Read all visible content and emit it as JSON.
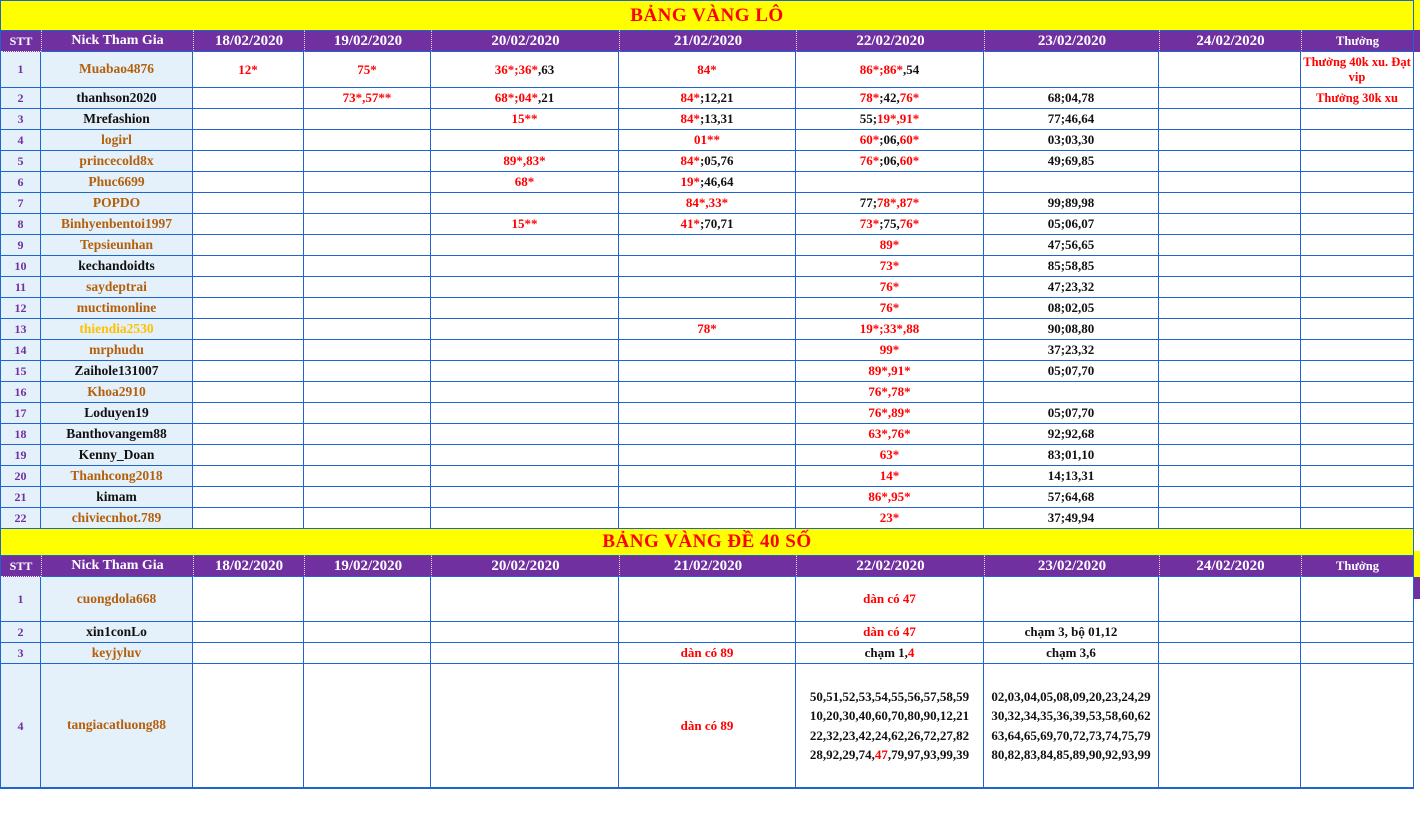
{
  "palette": {
    "red": "#FF0000",
    "black": "#111111",
    "brown": "#B45F0B",
    "gold": "#FFC000",
    "purple": "#7030A0",
    "header_bg": "#7030A0",
    "grid_blue": "#1E65D0",
    "band_yellow": "#FFFF00",
    "row_header_bg": "#E4F1FA"
  },
  "table1": {
    "title": "BẢNG VÀNG LÔ",
    "headers": [
      "STT",
      "Nick Tham Gia",
      "18/02/2020",
      "19/02/2020",
      "20/02/2020",
      "21/02/2020",
      "22/02/2020",
      "23/02/2020",
      "24/02/2020",
      "Thưởng"
    ],
    "rows": [
      {
        "stt": "1",
        "nick": "Muabao4876",
        "nick_color": "brown",
        "cells": {
          "d18": [
            {
              "t": "12*",
              "c": "red"
            }
          ],
          "d19": [
            {
              "t": "75*",
              "c": "red"
            }
          ],
          "d20": [
            {
              "t": "36*;36*",
              "c": "red"
            },
            {
              "t": ",63",
              "c": "black"
            }
          ],
          "d21": [
            {
              "t": "84*",
              "c": "red"
            }
          ],
          "d22": [
            {
              "t": "86*;86*",
              "c": "red"
            },
            {
              "t": ",54",
              "c": "black"
            }
          ],
          "reward": [
            {
              "t": "Thưởng 40k xu. Đạt vip",
              "c": "red"
            }
          ]
        }
      },
      {
        "stt": "2",
        "nick": "thanhson2020",
        "nick_color": "black",
        "cells": {
          "d19": [
            {
              "t": "73*,57**",
              "c": "red"
            }
          ],
          "d20": [
            {
              "t": "68*;04*",
              "c": "red"
            },
            {
              "t": ",21",
              "c": "black"
            }
          ],
          "d21": [
            {
              "t": "84*",
              "c": "red"
            },
            {
              "t": ";12,21",
              "c": "black"
            }
          ],
          "d22": [
            {
              "t": "78*",
              "c": "red"
            },
            {
              "t": ";42,",
              "c": "black"
            },
            {
              "t": "76*",
              "c": "red"
            }
          ],
          "d23": [
            {
              "t": "68;04,78",
              "c": "black"
            }
          ],
          "reward": [
            {
              "t": "Thưởng 30k xu",
              "c": "red"
            }
          ]
        }
      },
      {
        "stt": "3",
        "nick": "Mrefashion",
        "nick_color": "black",
        "cells": {
          "d20": [
            {
              "t": "15**",
              "c": "red"
            }
          ],
          "d21": [
            {
              "t": "84*",
              "c": "red"
            },
            {
              "t": ";13,31",
              "c": "black"
            }
          ],
          "d22": [
            {
              "t": "55;",
              "c": "black"
            },
            {
              "t": "19*,91*",
              "c": "red"
            }
          ],
          "d23": [
            {
              "t": "77;46,64",
              "c": "black"
            }
          ]
        }
      },
      {
        "stt": "4",
        "nick": "logirl",
        "nick_color": "brown",
        "cells": {
          "d21": [
            {
              "t": "01**",
              "c": "red"
            }
          ],
          "d22": [
            {
              "t": "60*",
              "c": "red"
            },
            {
              "t": ";06,",
              "c": "black"
            },
            {
              "t": "60*",
              "c": "red"
            }
          ],
          "d23": [
            {
              "t": "03;03,30",
              "c": "black"
            }
          ]
        }
      },
      {
        "stt": "5",
        "nick": "princecold8x",
        "nick_color": "brown",
        "cells": {
          "d20": [
            {
              "t": "89*,83*",
              "c": "red"
            }
          ],
          "d21": [
            {
              "t": "84*",
              "c": "red"
            },
            {
              "t": ";05,76",
              "c": "black"
            }
          ],
          "d22": [
            {
              "t": "76*",
              "c": "red"
            },
            {
              "t": ";06,",
              "c": "black"
            },
            {
              "t": "60*",
              "c": "red"
            }
          ],
          "d23": [
            {
              "t": "49;69,85",
              "c": "black"
            }
          ]
        }
      },
      {
        "stt": "6",
        "nick": "Phuc6699",
        "nick_color": "brown",
        "cells": {
          "d20": [
            {
              "t": "68*",
              "c": "red"
            }
          ],
          "d21": [
            {
              "t": "19*",
              "c": "red"
            },
            {
              "t": ";46,64",
              "c": "black"
            }
          ]
        }
      },
      {
        "stt": "7",
        "nick": "POPDO",
        "nick_color": "brown",
        "cells": {
          "d21": [
            {
              "t": "84*,33*",
              "c": "red"
            }
          ],
          "d22": [
            {
              "t": "77;",
              "c": "black"
            },
            {
              "t": "78*,87*",
              "c": "red"
            }
          ],
          "d23": [
            {
              "t": "99;89,98",
              "c": "black"
            }
          ]
        }
      },
      {
        "stt": "8",
        "nick": "Binhyenbentoi1997",
        "nick_color": "brown",
        "cells": {
          "d20": [
            {
              "t": "15**",
              "c": "red"
            }
          ],
          "d21": [
            {
              "t": "41*",
              "c": "red"
            },
            {
              "t": ";70,71",
              "c": "black"
            }
          ],
          "d22": [
            {
              "t": "73*",
              "c": "red"
            },
            {
              "t": ";75,",
              "c": "black"
            },
            {
              "t": "76*",
              "c": "red"
            }
          ],
          "d23": [
            {
              "t": "05;06,07",
              "c": "black"
            }
          ]
        }
      },
      {
        "stt": "9",
        "nick": "Tepsieunhan",
        "nick_color": "brown",
        "cells": {
          "d22": [
            {
              "t": "89*",
              "c": "red"
            }
          ],
          "d23": [
            {
              "t": "47;56,65",
              "c": "black"
            }
          ]
        }
      },
      {
        "stt": "10",
        "nick": "kechandoidts",
        "nick_color": "black",
        "cells": {
          "d22": [
            {
              "t": "73*",
              "c": "red"
            }
          ],
          "d23": [
            {
              "t": "85;58,85",
              "c": "black"
            }
          ]
        }
      },
      {
        "stt": "11",
        "nick": "saydeptrai",
        "nick_color": "brown",
        "cells": {
          "d22": [
            {
              "t": "76*",
              "c": "red"
            }
          ],
          "d23": [
            {
              "t": "47;23,32",
              "c": "black"
            }
          ]
        }
      },
      {
        "stt": "12",
        "nick": "muctimonline",
        "nick_color": "brown",
        "cells": {
          "d22": [
            {
              "t": "76*",
              "c": "red"
            }
          ],
          "d23": [
            {
              "t": "08;02,05",
              "c": "black"
            }
          ]
        }
      },
      {
        "stt": "13",
        "nick": "thiendia2530",
        "nick_color": "gold",
        "cells": {
          "d21": [
            {
              "t": "78*",
              "c": "red"
            }
          ],
          "d22": [
            {
              "t": "19*;33*,88",
              "c": "red"
            }
          ],
          "d23": [
            {
              "t": "90;08,80",
              "c": "black"
            }
          ]
        }
      },
      {
        "stt": "14",
        "nick": "mrphudu",
        "nick_color": "brown",
        "cells": {
          "d22": [
            {
              "t": "99*",
              "c": "red"
            }
          ],
          "d23": [
            {
              "t": "37;23,32",
              "c": "black"
            }
          ]
        }
      },
      {
        "stt": "15",
        "nick": "Zaihole131007",
        "nick_color": "black",
        "cells": {
          "d22": [
            {
              "t": "89*,91*",
              "c": "red"
            }
          ],
          "d23": [
            {
              "t": "05;07,70",
              "c": "black"
            }
          ]
        }
      },
      {
        "stt": "16",
        "nick": "Khoa2910",
        "nick_color": "brown",
        "cells": {
          "d22": [
            {
              "t": "76*,78*",
              "c": "red"
            }
          ]
        }
      },
      {
        "stt": "17",
        "nick": "Loduyen19",
        "nick_color": "black",
        "cells": {
          "d22": [
            {
              "t": "76*,89*",
              "c": "red"
            }
          ],
          "d23": [
            {
              "t": "05;07,70",
              "c": "black"
            }
          ]
        }
      },
      {
        "stt": "18",
        "nick": "Banthovangem88",
        "nick_color": "black",
        "cells": {
          "d22": [
            {
              "t": "63*,76*",
              "c": "red"
            }
          ],
          "d23": [
            {
              "t": "92;92,68",
              "c": "black"
            }
          ]
        }
      },
      {
        "stt": "19",
        "nick": "Kenny_Doan",
        "nick_color": "black",
        "cells": {
          "d22": [
            {
              "t": "63*",
              "c": "red"
            }
          ],
          "d23": [
            {
              "t": "83;01,10",
              "c": "black"
            }
          ]
        }
      },
      {
        "stt": "20",
        "nick": "Thanhcong2018",
        "nick_color": "brown",
        "cells": {
          "d22": [
            {
              "t": "14*",
              "c": "red"
            }
          ],
          "d23": [
            {
              "t": "14;13,31",
              "c": "black"
            }
          ]
        }
      },
      {
        "stt": "21",
        "nick": "kimam",
        "nick_color": "black",
        "cells": {
          "d22": [
            {
              "t": "86*,95*",
              "c": "red"
            }
          ],
          "d23": [
            {
              "t": "57;64,68",
              "c": "black"
            }
          ]
        }
      },
      {
        "stt": "22",
        "nick": "chiviecnhot.789",
        "nick_color": "brown",
        "cells": {
          "d22": [
            {
              "t": "23*",
              "c": "red"
            }
          ],
          "d23": [
            {
              "t": "37;49,94",
              "c": "black"
            }
          ]
        }
      }
    ]
  },
  "table2": {
    "title": "BẢNG VÀNG ĐỀ 40 SỐ",
    "headers": [
      "STT",
      "Nick Tham Gia",
      "18/02/2020",
      "19/02/2020",
      "20/02/2020",
      "21/02/2020",
      "22/02/2020",
      "23/02/2020",
      "24/02/2020",
      "Thưởng"
    ],
    "rows": [
      {
        "stt": "1",
        "nick": "cuongdola668",
        "nick_color": "brown",
        "cells": {
          "d22": [
            {
              "t": "dàn có 47",
              "c": "red"
            }
          ]
        }
      },
      {
        "stt": "2",
        "nick": "xin1conLo",
        "nick_color": "black",
        "cells": {
          "d22": [
            {
              "t": "dàn có 47",
              "c": "red"
            }
          ],
          "d23": [
            {
              "t": "chạm 3, bộ 01,12",
              "c": "black"
            }
          ]
        }
      },
      {
        "stt": "3",
        "nick": "keyjyluv",
        "nick_color": "brown",
        "cells": {
          "d21": [
            {
              "t": "dàn có 89",
              "c": "red"
            }
          ],
          "d22": [
            {
              "t": "chạm 1,",
              "c": "black"
            },
            {
              "t": "4",
              "c": "red"
            }
          ],
          "d23": [
            {
              "t": "chạm 3,6",
              "c": "black"
            }
          ]
        }
      },
      {
        "stt": "4",
        "nick": "tangiacatluong88",
        "nick_color": "brown",
        "cells": {
          "d21": [
            {
              "t": "dàn có 89",
              "c": "red"
            }
          ],
          "d22": [
            {
              "t": "50,51,52,53,54,55,56,57,58,59\n10,20,30,40,60,70,80,90,12,21\n22,32,23,42,24,62,26,72,27,82\n28,92,29,74,",
              "c": "black"
            },
            {
              "t": "47",
              "c": "red"
            },
            {
              "t": ",79,97,93,99,39",
              "c": "black"
            }
          ],
          "d23": [
            {
              "t": "02,03,04,05,08,09,20,23,24,29\n30,32,34,35,36,39,53,58,60,62\n63,64,65,69,70,72,73,74,75,79\n80,82,83,84,85,89,90,92,93,99",
              "c": "black"
            }
          ]
        }
      }
    ]
  }
}
